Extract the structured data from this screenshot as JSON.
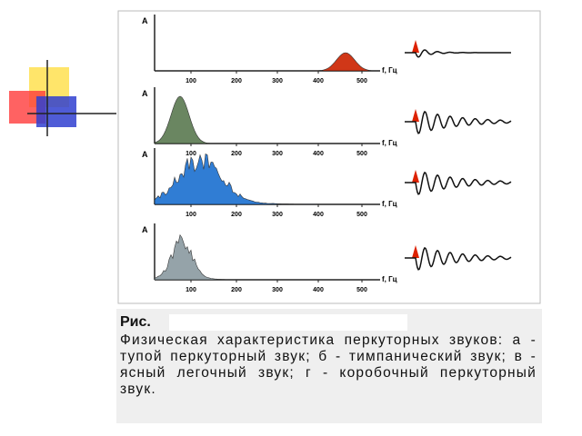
{
  "figure": {
    "panels": [
      {
        "y_label": "A",
        "x_label": "f, Гц",
        "ticks": [
          "100",
          "200",
          "300",
          "400",
          "500"
        ]
      },
      {
        "y_label": "A",
        "x_label": "f, Гц",
        "ticks": [
          "100",
          "200",
          "300",
          "400",
          "500"
        ]
      },
      {
        "y_label": "A",
        "x_label": "f, Гц",
        "ticks": [
          "100",
          "200",
          "300",
          "400",
          "500"
        ]
      },
      {
        "y_label": "A",
        "x_label": "f, Гц",
        "ticks": [
          "100",
          "200",
          "300",
          "400",
          "500"
        ]
      }
    ]
  },
  "caption": {
    "label": "Рис.",
    "text": "Физическая характеристика перкуторных звуков: а - тупой перкуторный звук; б - тимпанический звук; в - ясный легочный звук; г - коробочный перкуторный звук."
  }
}
